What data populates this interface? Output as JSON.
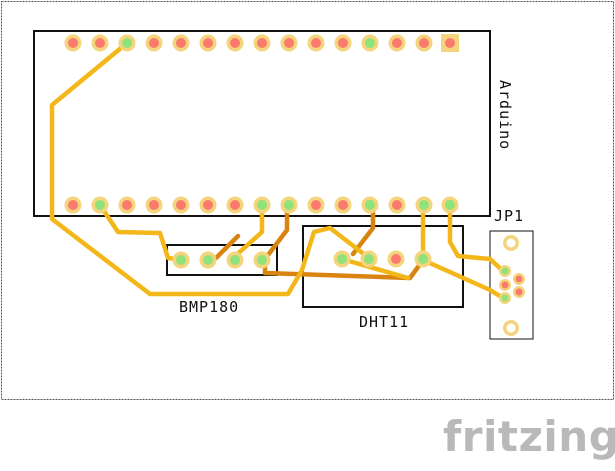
{
  "labels": {
    "arduino": "Arduino",
    "jp1": "JP1",
    "bmp180": "BMP180",
    "dht11": "DHT11"
  },
  "brand": "fritzing",
  "colors": {
    "trace_top": "#f4b719",
    "trace_bottom": "#d98310",
    "pad_ring": "#f4d47c",
    "pad_core": "#fb7a6e",
    "pad_connected": "#8fe37a",
    "outline": "#111111",
    "brand": "#b9b9b9"
  }
}
